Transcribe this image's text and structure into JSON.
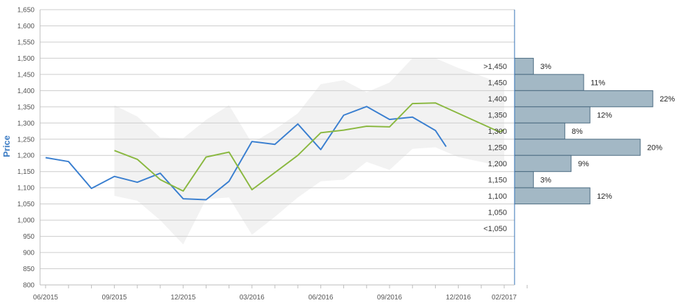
{
  "chart_data": {
    "type": "line",
    "ylabel": "Price",
    "ylim": [
      800,
      1650
    ],
    "y_ticks": [
      "800",
      "850",
      "900",
      "950",
      "1,000",
      "1,050",
      "1,100",
      "1,150",
      "1,200",
      "1,250",
      "1,300",
      "1,350",
      "1,400",
      "1,450",
      "1,500",
      "1,550",
      "1,600",
      "1,650"
    ],
    "x_tick_labels": [
      "06/2015",
      "09/2015",
      "12/2015",
      "03/2016",
      "06/2016",
      "09/2016",
      "12/2016",
      "02/2017"
    ],
    "grid": true,
    "series": [
      {
        "key": "price",
        "color": "#3a7fd0",
        "points": [
          {
            "x": "2015-06",
            "y": 1193
          },
          {
            "x": "2015-07",
            "y": 1181
          },
          {
            "x": "2015-08",
            "y": 1098
          },
          {
            "x": "2015-09",
            "y": 1135
          },
          {
            "x": "2015-10",
            "y": 1117
          },
          {
            "x": "2015-11",
            "y": 1145
          },
          {
            "x": "2015-12",
            "y": 1066
          },
          {
            "x": "2016-01",
            "y": 1063
          },
          {
            "x": "2016-02",
            "y": 1120
          },
          {
            "x": "2016-03",
            "y": 1243
          },
          {
            "x": "2016-04",
            "y": 1234
          },
          {
            "x": "2016-05",
            "y": 1297
          },
          {
            "x": "2016-06",
            "y": 1218
          },
          {
            "x": "2016-07",
            "y": 1324
          },
          {
            "x": "2016-08",
            "y": 1351
          },
          {
            "x": "2016-09",
            "y": 1311
          },
          {
            "x": "2016-10",
            "y": 1318
          },
          {
            "x": "2016-11",
            "y": 1277
          },
          {
            "x": "2016-11-15",
            "y": 1227
          }
        ]
      },
      {
        "key": "target",
        "color": "#8ab840",
        "points": [
          {
            "x": "2015-09",
            "y": 1215
          },
          {
            "x": "2015-10",
            "y": 1188
          },
          {
            "x": "2015-11",
            "y": 1125
          },
          {
            "x": "2015-12",
            "y": 1090
          },
          {
            "x": "2016-01",
            "y": 1195
          },
          {
            "x": "2016-02",
            "y": 1210
          },
          {
            "x": "2016-03",
            "y": 1094
          },
          {
            "x": "2016-05",
            "y": 1200
          },
          {
            "x": "2016-06",
            "y": 1270
          },
          {
            "x": "2016-07",
            "y": 1278
          },
          {
            "x": "2016-08",
            "y": 1290
          },
          {
            "x": "2016-09",
            "y": 1288
          },
          {
            "x": "2016-10",
            "y": 1360
          },
          {
            "x": "2016-11",
            "y": 1362
          },
          {
            "x": "2017-01-25",
            "y": 1272
          },
          {
            "x": "2017-02",
            "y": 1280
          }
        ]
      }
    ],
    "range_band": {
      "color": "#f2f2f2",
      "upper": [
        {
          "x": "2015-09",
          "y": 1355
        },
        {
          "x": "2015-10",
          "y": 1320
        },
        {
          "x": "2015-11",
          "y": 1255
        },
        {
          "x": "2015-12",
          "y": 1253
        },
        {
          "x": "2016-01",
          "y": 1310
        },
        {
          "x": "2016-02",
          "y": 1355
        },
        {
          "x": "2016-03",
          "y": 1238
        },
        {
          "x": "2016-04",
          "y": 1280
        },
        {
          "x": "2016-05",
          "y": 1330
        },
        {
          "x": "2016-06",
          "y": 1420
        },
        {
          "x": "2016-07",
          "y": 1432
        },
        {
          "x": "2016-08",
          "y": 1395
        },
        {
          "x": "2016-09",
          "y": 1425
        },
        {
          "x": "2016-10",
          "y": 1500
        },
        {
          "x": "2016-11",
          "y": 1500
        },
        {
          "x": "2016-12",
          "y": 1470
        },
        {
          "x": "2017-02",
          "y": 1420
        }
      ],
      "lower": [
        {
          "x": "2015-09",
          "y": 1075
        },
        {
          "x": "2015-10",
          "y": 1060
        },
        {
          "x": "2015-11",
          "y": 1000
        },
        {
          "x": "2015-12",
          "y": 925
        },
        {
          "x": "2016-01",
          "y": 1065
        },
        {
          "x": "2016-02",
          "y": 1070
        },
        {
          "x": "2016-03",
          "y": 955
        },
        {
          "x": "2016-04",
          "y": 1010
        },
        {
          "x": "2016-05",
          "y": 1070
        },
        {
          "x": "2016-06",
          "y": 1120
        },
        {
          "x": "2016-07",
          "y": 1125
        },
        {
          "x": "2016-08",
          "y": 1180
        },
        {
          "x": "2016-09",
          "y": 1155
        },
        {
          "x": "2016-10",
          "y": 1220
        },
        {
          "x": "2016-11",
          "y": 1225
        },
        {
          "x": "2016-12",
          "y": 1195
        },
        {
          "x": "2017-02",
          "y": 1165
        }
      ]
    },
    "distribution": {
      "bar_color": "#a3b8c5",
      "bins": [
        {
          "label": ">1,450",
          "y": 1475,
          "pct": 3
        },
        {
          "label": "1,450",
          "y": 1425,
          "pct": 11
        },
        {
          "label": "1,400",
          "y": 1375,
          "pct": 22
        },
        {
          "label": "1,350",
          "y": 1325,
          "pct": 12
        },
        {
          "label": "1,300",
          "y": 1275,
          "pct": 8
        },
        {
          "label": "1,250",
          "y": 1225,
          "pct": 20
        },
        {
          "label": "1,200",
          "y": 1175,
          "pct": 9
        },
        {
          "label": "1,150",
          "y": 1125,
          "pct": 3
        },
        {
          "label": "1,100",
          "y": 1075,
          "pct": 12
        },
        {
          "label": "1,050",
          "y": 1025,
          "pct": 0
        },
        {
          "label": "<1,050",
          "y": 975,
          "pct": 0
        }
      ],
      "pct_labels": [
        "3%",
        "11%",
        "22%",
        "12%",
        "8%",
        "20%",
        "9%",
        "3%",
        "12%"
      ]
    }
  }
}
